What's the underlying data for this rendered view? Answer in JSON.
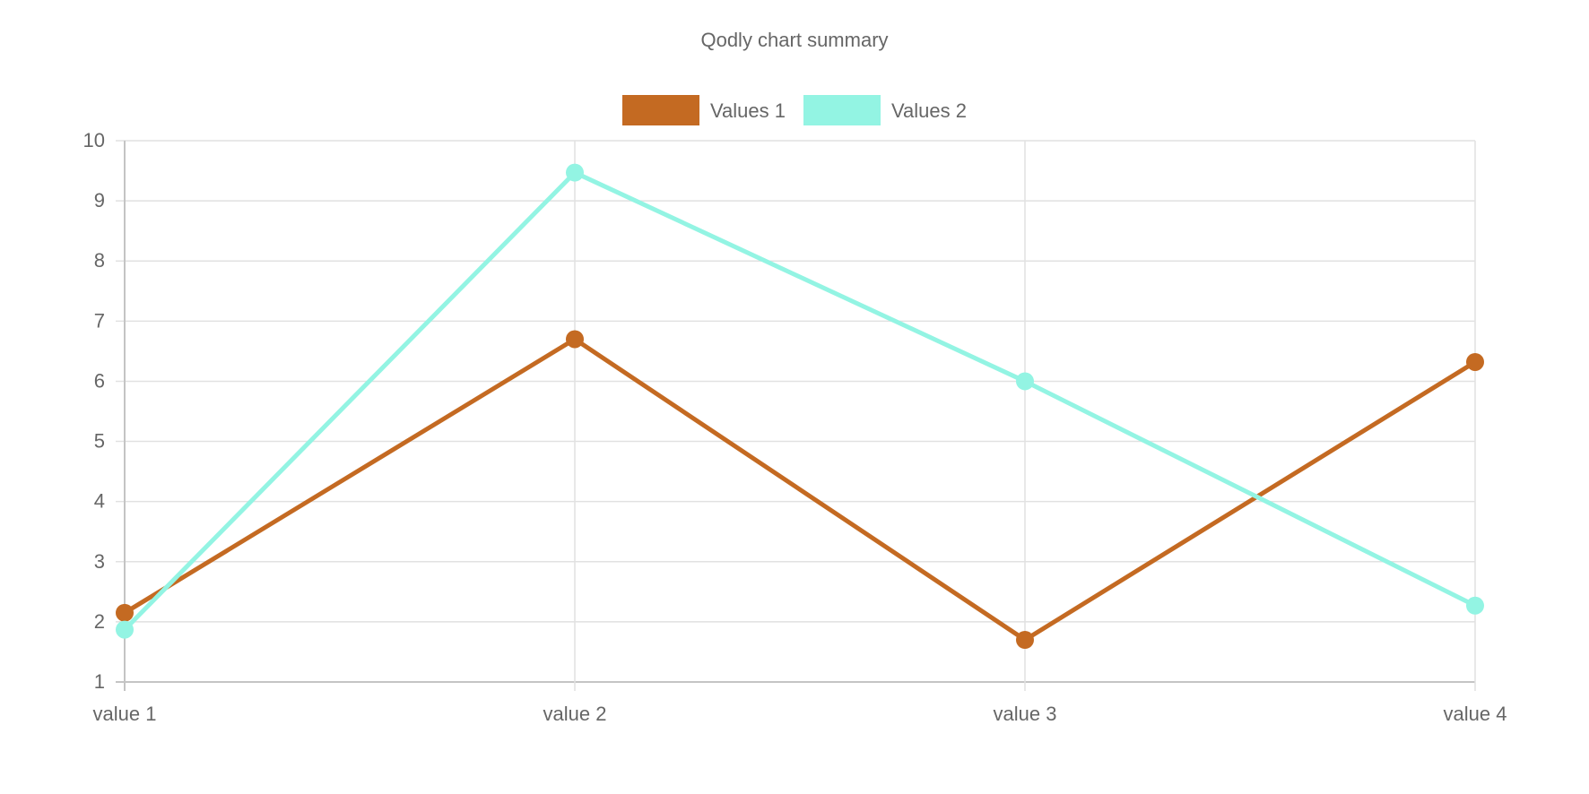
{
  "chart_data": {
    "type": "line",
    "title": "Qodly chart summary",
    "xlabel": "",
    "ylabel": "",
    "categories": [
      "value 1",
      "value 2",
      "value 3",
      "value 4"
    ],
    "ylim": [
      1,
      10
    ],
    "y_ticks": [
      1,
      2,
      3,
      4,
      5,
      6,
      7,
      8,
      9,
      10
    ],
    "grid": true,
    "legend_position": "top",
    "series": [
      {
        "name": "Values 1",
        "color": "#C46A22",
        "values": [
          2.15,
          6.7,
          1.7,
          6.32
        ]
      },
      {
        "name": "Values 2",
        "color": "#93F4E3",
        "values": [
          1.87,
          9.47,
          6.0,
          2.27
        ]
      }
    ]
  }
}
